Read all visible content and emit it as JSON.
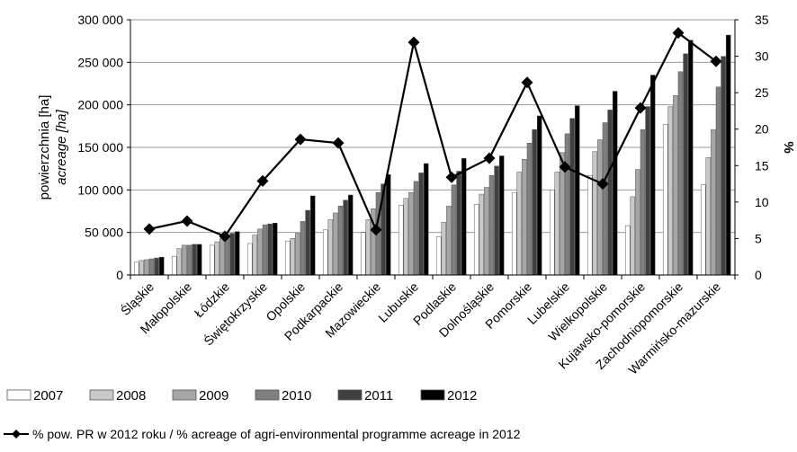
{
  "chart_data": {
    "type": "bar",
    "title": "",
    "ylabel": "powierzchnia [ha]",
    "ylabel_en": "acreage [ha]",
    "y2label": "%",
    "ylim": [
      0,
      300000
    ],
    "y2lim": [
      0,
      35
    ],
    "yticks": [
      "0",
      "50 000",
      "100 000",
      "150 000",
      "200 000",
      "250 000",
      "300 000"
    ],
    "y2ticks": [
      "0",
      "5",
      "10",
      "15",
      "20",
      "25",
      "30",
      "35"
    ],
    "grid": true,
    "legend_position": "bottom",
    "categories": [
      "Śląskie",
      "Małopolskie",
      "Łódzkie",
      "Świętokrzyskie",
      "Opolskie",
      "Podkarpackie",
      "Mazowieckie",
      "Lubuskie",
      "Podlaskie",
      "Dolnośląskie",
      "Pomorskie",
      "Lubelskie",
      "Wielkopolskie",
      "Kujawsko-pomorskie",
      "Zachodniopomorskie",
      "Warmińsko-mazurskie"
    ],
    "series": [
      {
        "name": "2007",
        "color": "#ffffff",
        "values": [
          15000,
          22000,
          35000,
          37000,
          40000,
          53000,
          50000,
          82000,
          45000,
          83000,
          97000,
          100000,
          117000,
          58000,
          177000,
          106000
        ]
      },
      {
        "name": "2008",
        "color": "#c8c8c8",
        "values": [
          17000,
          31000,
          39000,
          47000,
          43000,
          65000,
          65000,
          90000,
          62000,
          95000,
          121000,
          121000,
          145000,
          92000,
          198000,
          138000
        ]
      },
      {
        "name": "2009",
        "color": "#a6a6a6",
        "values": [
          18000,
          35000,
          43000,
          54000,
          49000,
          73000,
          78000,
          97000,
          81000,
          103000,
          136000,
          144000,
          159000,
          124000,
          211000,
          171000
        ]
      },
      {
        "name": "2010",
        "color": "#7f7f7f",
        "values": [
          19000,
          35000,
          46000,
          59000,
          63000,
          81000,
          97000,
          110000,
          106000,
          117000,
          155000,
          166000,
          179000,
          171000,
          239000,
          221000
        ]
      },
      {
        "name": "2011",
        "color": "#404040",
        "values": [
          20000,
          36000,
          49000,
          60000,
          76000,
          88000,
          107000,
          120000,
          122000,
          128000,
          171000,
          184000,
          194000,
          198000,
          260000,
          257000
        ]
      },
      {
        "name": "2012",
        "color": "#000000",
        "values": [
          21000,
          36000,
          51000,
          61000,
          93000,
          94000,
          118000,
          131000,
          137000,
          140000,
          187000,
          199000,
          216000,
          235000,
          276000,
          282000
        ]
      }
    ],
    "line_series": {
      "name": "% pow. PR w 2012 roku / % acreage of agri-environmental programme acreage in 2012",
      "axis": "right",
      "color": "#000000",
      "marker": "diamond",
      "values": [
        6.3,
        7.4,
        5.3,
        12.9,
        18.6,
        18.1,
        6.2,
        31.9,
        13.4,
        16.0,
        26.4,
        14.8,
        12.5,
        22.9,
        33.2,
        29.3
      ]
    }
  }
}
